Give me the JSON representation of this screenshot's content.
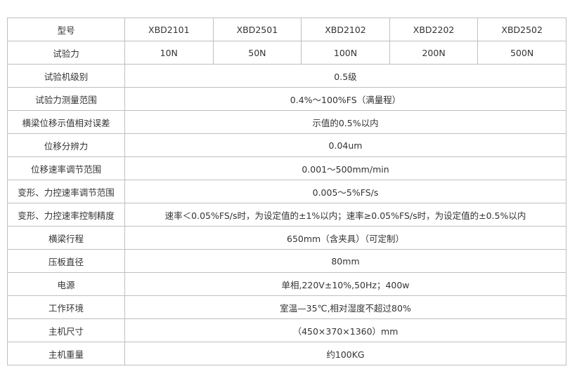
{
  "header": {
    "label": "型号",
    "models": [
      "XBD2101",
      "XBD2501",
      "XBD2102",
      "XBD2202",
      "XBD2502"
    ]
  },
  "force": {
    "label": "试验力",
    "values": [
      "10N",
      "50N",
      "100N",
      "200N",
      "500N"
    ]
  },
  "rows": [
    {
      "label": "试验机级别",
      "value": "0.5级"
    },
    {
      "label": "试验力测量范围",
      "value": "0.4%～100%FS（满量程）"
    },
    {
      "label": "横梁位移示值相对误差",
      "value": "示值的0.5%以内"
    },
    {
      "label": "位移分辨力",
      "value": "0.04um"
    },
    {
      "label": "位移速率调节范围",
      "value": "0.001～500mm/min"
    },
    {
      "label": "变形、力控速率调节范围",
      "value": "0.005～5%FS/s"
    },
    {
      "label": "变形、力控速率控制精度",
      "value": "速率＜0.05%FS/s时，为设定值的±1%以内；速率≥0.05%FS/s时，为设定值的±0.5%以内"
    },
    {
      "label": "横梁行程",
      "value": "650mm（含夹具）（可定制）"
    },
    {
      "label": "压板直径",
      "value": "80mm"
    },
    {
      "label": "电源",
      "value": "单相,220V±10%,50Hz；400w"
    },
    {
      "label": "工作环境",
      "value": "室温—35℃,相对湿度不超过80%"
    },
    {
      "label": "主机尺寸",
      "value": "（450×370×1360）mm"
    },
    {
      "label": "主机重量",
      "value": "约100KG"
    }
  ]
}
